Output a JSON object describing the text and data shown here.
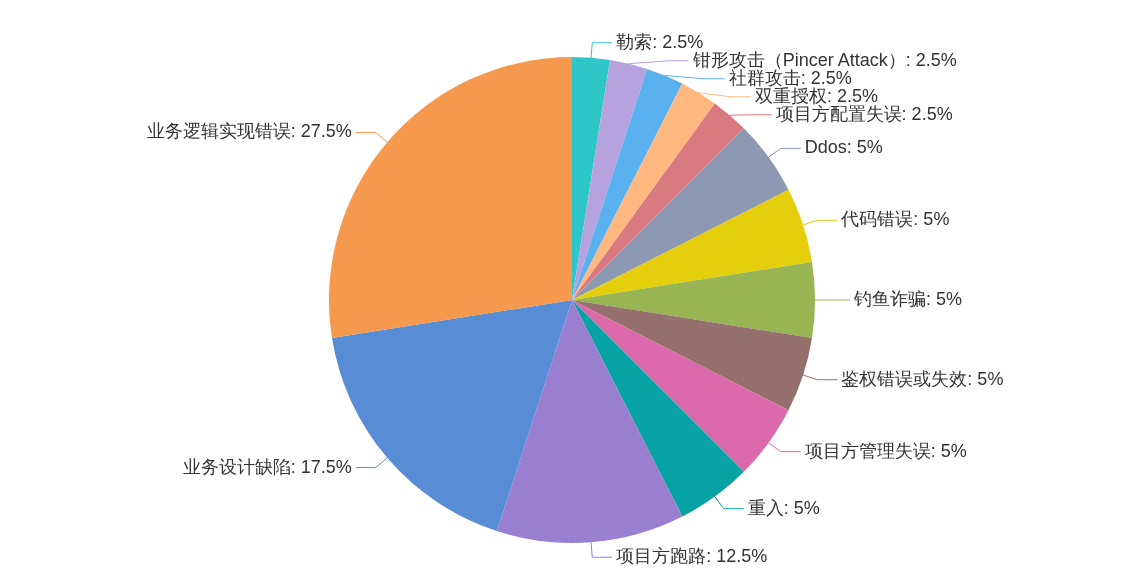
{
  "chart_data": {
    "type": "pie",
    "categories": [
      "勒索",
      "钳形攻击（Pincer Attack）",
      "社群攻击",
      "双重授权",
      "项目方配置失误",
      "Ddos",
      "代码错误",
      "钓鱼诈骗",
      "鉴权错误或失效",
      "项目方管理失误",
      "重入",
      "项目方跑路",
      "业务设计缺陷",
      "业务逻辑实现错误"
    ],
    "values": [
      2.5,
      2.5,
      2.5,
      2.5,
      2.5,
      5,
      5,
      5,
      5,
      5,
      5,
      12.5,
      17.5,
      27.5
    ],
    "colors": [
      "#2ec7c9",
      "#b6a2de",
      "#5ab1ef",
      "#ffb980",
      "#d87a80",
      "#8d98b3",
      "#e5cf0d",
      "#97b552",
      "#95706d",
      "#dc69aa",
      "#07a2a4",
      "#9a7fd1",
      "#588dd5",
      "#f5994e"
    ],
    "value_labels": [
      "2.5%",
      "2.5%",
      "2.5%",
      "2.5%",
      "2.5%",
      "5%",
      "5%",
      "5%",
      "5%",
      "5%",
      "5%",
      "12.5%",
      "17.5%",
      "27.5%"
    ]
  }
}
